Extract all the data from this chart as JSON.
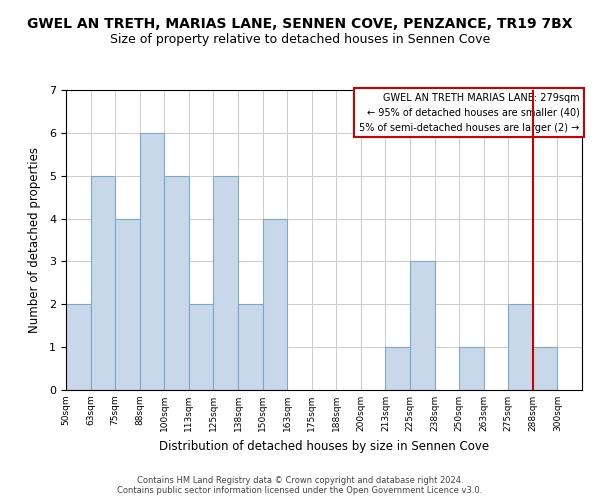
{
  "title": "GWEL AN TRETH, MARIAS LANE, SENNEN COVE, PENZANCE, TR19 7BX",
  "subtitle": "Size of property relative to detached houses in Sennen Cove",
  "xlabel": "Distribution of detached houses by size in Sennen Cove",
  "ylabel": "Number of detached properties",
  "footer_line1": "Contains HM Land Registry data © Crown copyright and database right 2024.",
  "footer_line2": "Contains public sector information licensed under the Open Government Licence v3.0.",
  "bin_labels": [
    "50sqm",
    "63sqm",
    "75sqm",
    "88sqm",
    "100sqm",
    "113sqm",
    "125sqm",
    "138sqm",
    "150sqm",
    "163sqm",
    "175sqm",
    "188sqm",
    "200sqm",
    "213sqm",
    "225sqm",
    "238sqm",
    "250sqm",
    "263sqm",
    "275sqm",
    "288sqm",
    "300sqm"
  ],
  "bar_values": [
    2,
    5,
    4,
    6,
    5,
    2,
    5,
    2,
    4,
    0,
    0,
    0,
    0,
    1,
    3,
    0,
    1,
    0,
    2,
    1,
    0
  ],
  "bar_color": "#c8d8ea",
  "bar_edge_color": "#7aaac8",
  "ylim": [
    0,
    7
  ],
  "yticks": [
    0,
    1,
    2,
    3,
    4,
    5,
    6,
    7
  ],
  "marker_color": "#cc0000",
  "legend_title": "GWEL AN TRETH MARIAS LANE: 279sqm",
  "legend_line1": "← 95% of detached houses are smaller (40)",
  "legend_line2": "5% of semi-detached houses are larger (2) →",
  "legend_box_color": "#ffffff",
  "legend_border_color": "#cc0000",
  "background_color": "#ffffff",
  "grid_color": "#cccccc",
  "title_fontsize": 10,
  "subtitle_fontsize": 9
}
